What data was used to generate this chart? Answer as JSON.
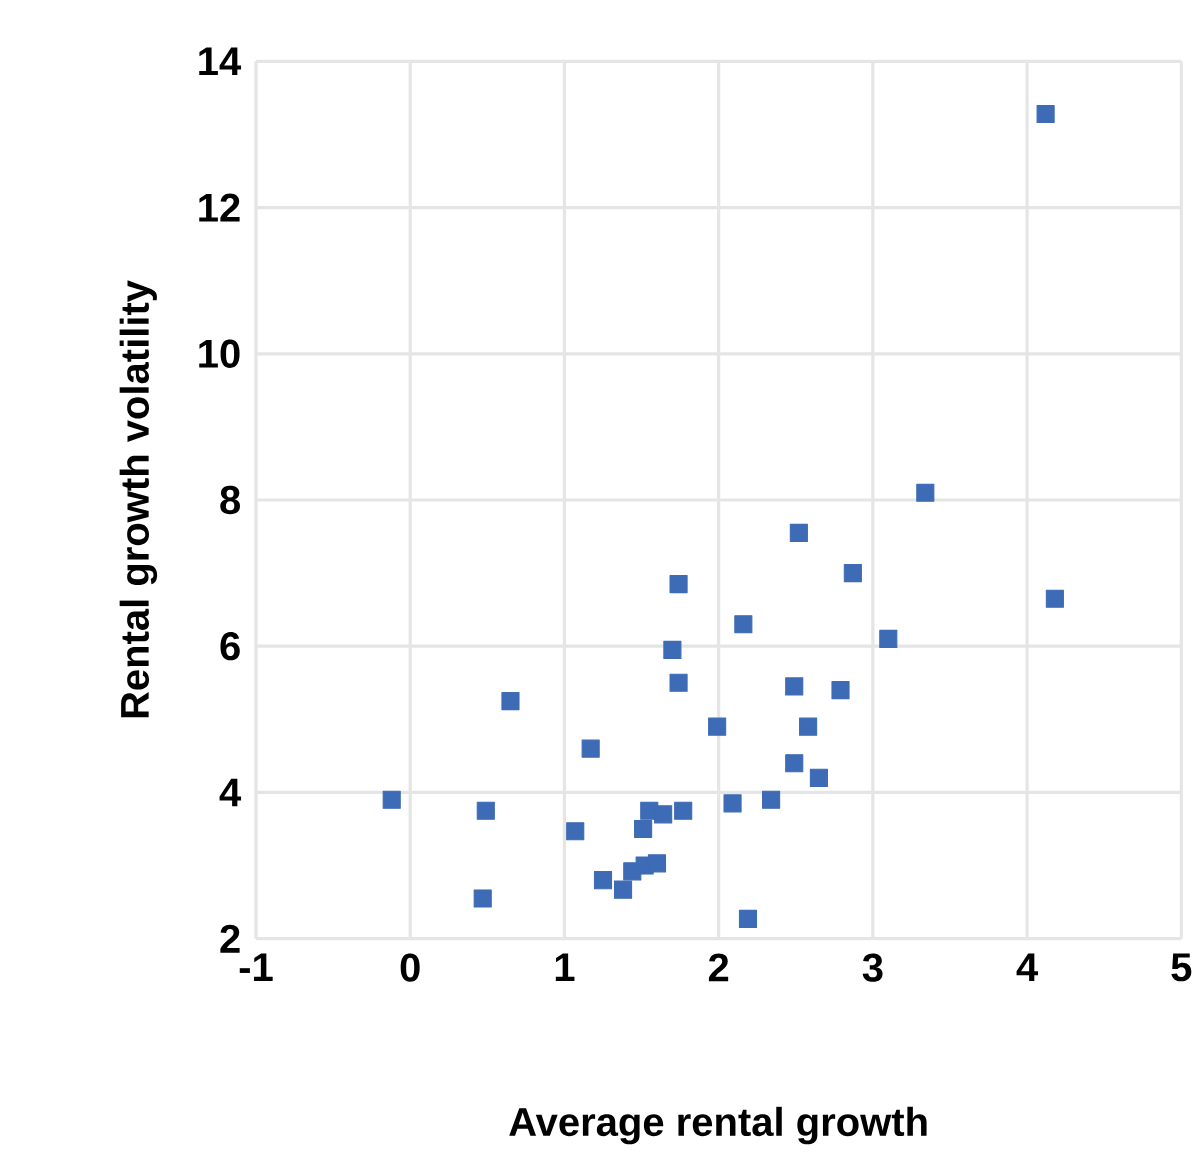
{
  "chart_data": {
    "type": "scatter",
    "xlabel": "Average rental growth",
    "ylabel": "Rental growth volatility",
    "xlim": [
      -1,
      5
    ],
    "ylim": [
      2,
      14
    ],
    "xticks": [
      -1,
      0,
      1,
      2,
      3,
      4,
      5
    ],
    "yticks": [
      2,
      4,
      6,
      8,
      10,
      12,
      14
    ],
    "grid": true,
    "marker": "square",
    "series": [
      {
        "color": "#3e6bb5",
        "x": [
          -0.12,
          0.49,
          0.47,
          0.65,
          1.17,
          1.07,
          1.25,
          1.38,
          1.44,
          1.52,
          1.6,
          1.51,
          1.55,
          1.64,
          1.77,
          1.7,
          1.74,
          1.74,
          1.99,
          2.09,
          2.19,
          2.34,
          2.16,
          2.49,
          2.49,
          2.58,
          2.65,
          2.79,
          2.52,
          2.87,
          3.1,
          3.34,
          4.12,
          4.18
        ],
        "values": [
          3.9,
          3.75,
          2.55,
          5.25,
          4.6,
          3.47,
          2.8,
          2.67,
          2.92,
          3.0,
          3.03,
          3.5,
          3.75,
          3.7,
          3.75,
          5.95,
          5.5,
          6.85,
          4.9,
          3.85,
          2.27,
          3.9,
          6.3,
          5.45,
          4.4,
          4.9,
          4.2,
          5.4,
          7.55,
          7.0,
          6.1,
          8.1,
          13.28,
          6.65
        ]
      }
    ]
  }
}
